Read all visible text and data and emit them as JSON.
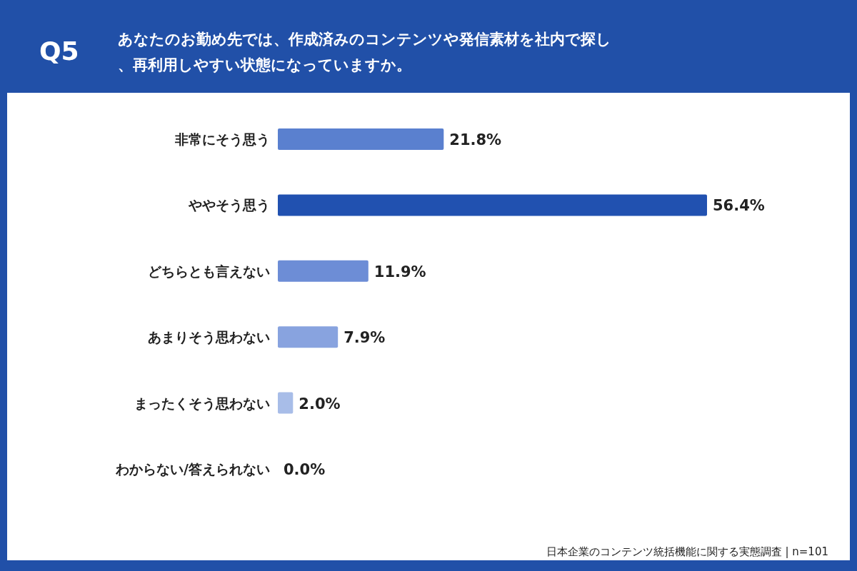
{
  "chart_data": {
    "type": "bar",
    "orientation": "horizontal",
    "title": "Q5",
    "subtitle": "あなたのお勤め先では、作成済みのコンテンツや発信素材を社内で探し、再利用しやすい状態になっていますか。",
    "categories": [
      "非常にそう思う",
      "ややそう思う",
      "どちらとも言えない",
      "あまりそう思わない",
      "まったくそう思わない",
      "わからない/答えられない"
    ],
    "values": [
      21.8,
      56.4,
      11.9,
      7.9,
      2.0,
      0.0
    ],
    "colors": [
      "#5a80cf",
      "#2151b0",
      "#6d8dd6",
      "#88a3df",
      "#a8bde8",
      "#b8c9ec"
    ],
    "value_labels": [
      "21.8%",
      "56.4%",
      "11.9%",
      "7.9%",
      "2.0%",
      "0.0%"
    ],
    "annotations": [
      "日本企業のコンテンツ統括機能に関する実態調査 | n=101"
    ]
  }
}
